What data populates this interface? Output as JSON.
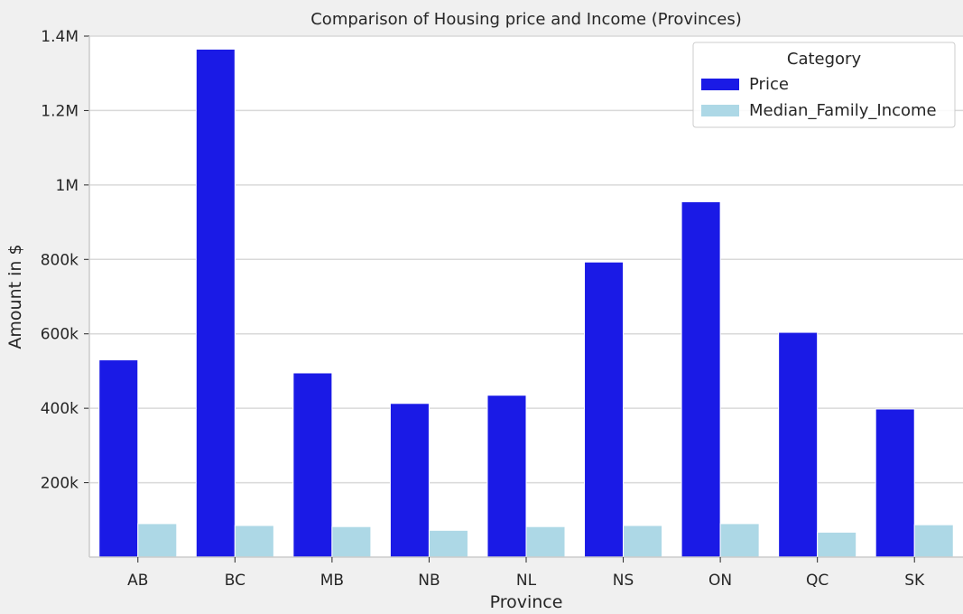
{
  "chart_data": {
    "type": "bar",
    "title": "Comparison of Housing price and Income (Provinces)",
    "xlabel": "Province",
    "ylabel": "Amount in $",
    "categories": [
      "AB",
      "BC",
      "MB",
      "NB",
      "NL",
      "NS",
      "ON",
      "QC",
      "SK"
    ],
    "series": [
      {
        "name": "Price",
        "color": "#1a1ae6",
        "values": [
          530000,
          1365000,
          495000,
          413000,
          435000,
          793000,
          955000,
          604000,
          398000
        ]
      },
      {
        "name": "Median_Family_Income",
        "color": "#add8e6",
        "values": [
          90000,
          85000,
          82000,
          72000,
          82000,
          85000,
          90000,
          67000,
          87000
        ]
      }
    ],
    "ylim": [
      0,
      1400000
    ],
    "yticks": [
      {
        "value": 200000,
        "label": "200k"
      },
      {
        "value": 400000,
        "label": "400k"
      },
      {
        "value": 600000,
        "label": "600k"
      },
      {
        "value": 800000,
        "label": "800k"
      },
      {
        "value": 1000000,
        "label": "1M"
      },
      {
        "value": 1200000,
        "label": "1.2M"
      },
      {
        "value": 1400000,
        "label": "1.4M"
      }
    ],
    "grid": true,
    "legend": {
      "title": "Category",
      "placement": "top-right"
    }
  }
}
